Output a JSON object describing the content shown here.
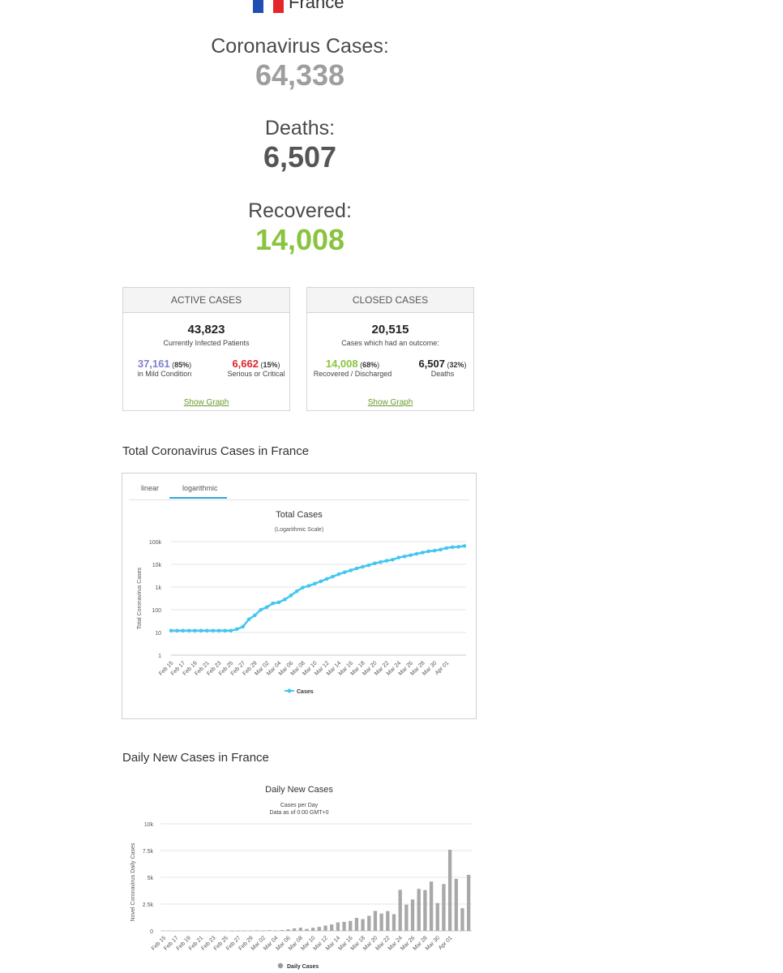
{
  "country": {
    "name": "France",
    "flag_colors": [
      "#1f4fb5",
      "#ffffff",
      "#e3262a"
    ]
  },
  "stats": [
    {
      "label": "Coronavirus Cases:",
      "value": "64,338",
      "color": "#9e9e9e"
    },
    {
      "label": "Deaths:",
      "value": "6,507",
      "color": "#555555"
    },
    {
      "label": "Recovered:",
      "value": "14,008",
      "color": "#8ac43f"
    }
  ],
  "active_cases": {
    "header": "Active Cases",
    "total": "43,823",
    "total_label": "Currently Infected Patients",
    "mild": {
      "value": "37,161",
      "pct": "85%",
      "label": "in Mild Condition",
      "color": "#8080cf"
    },
    "critical": {
      "value": "6,662",
      "pct": "15%",
      "label": "Serious or Critical",
      "color": "#e0242a"
    },
    "link": "Show Graph"
  },
  "closed_cases": {
    "header": "Closed Cases",
    "total": "20,515",
    "total_label": "Cases which had an outcome:",
    "recovered": {
      "value": "14,008",
      "pct": "68%",
      "label": "Recovered / Discharged",
      "color": "#8ac43f"
    },
    "deaths": {
      "value": "6,507",
      "pct": "32%",
      "label": "Deaths",
      "color": "#222222"
    },
    "link": "Show Graph"
  },
  "total_section": {
    "heading": "Total Coronavirus Cases in France",
    "tabs": [
      "linear",
      "logarithmic"
    ],
    "active_tab": "logarithmic"
  },
  "daily_section": {
    "heading": "Daily New Cases in France"
  },
  "chart_data": [
    {
      "type": "line",
      "title": "Total Cases",
      "subtitle": "(Logarithmic Scale)",
      "xlabel": "",
      "ylabel": "Total Coronavirus Cases",
      "yscale": "log",
      "ylim": [
        1,
        100000
      ],
      "yticks": [
        "1",
        "10",
        "100",
        "1k",
        "10k",
        "100k"
      ],
      "xtick_labels": [
        "Feb 15",
        "Feb 17",
        "Feb 19",
        "Feb 21",
        "Feb 23",
        "Feb 25",
        "Feb 27",
        "Feb 29",
        "Mar 02",
        "Mar 04",
        "Mar 06",
        "Mar 08",
        "Mar 10",
        "Mar 12",
        "Mar 14",
        "Mar 16",
        "Mar 18",
        "Mar 20",
        "Mar 22",
        "Mar 24",
        "Mar 26",
        "Mar 28",
        "Mar 30",
        "Apr 01"
      ],
      "legend": "bottom-center",
      "color": "#43c6f1",
      "series": [
        {
          "name": "Cases",
          "values": [
            12,
            12,
            12,
            12,
            12,
            12,
            12,
            12,
            12,
            12,
            12,
            14,
            18,
            38,
            57,
            100,
            130,
            191,
            212,
            285,
            423,
            653,
            949,
            1126,
            1412,
            1784,
            2281,
            2876,
            3661,
            4499,
            5423,
            6633,
            7730,
            9134,
            10995,
            12612,
            14459,
            16018,
            19856,
            22302,
            25233,
            29155,
            32964,
            37575,
            40174,
            44550,
            52128,
            56989,
            59105,
            64338
          ]
        }
      ]
    },
    {
      "type": "bar",
      "title": "Daily New Cases",
      "subtitle": "Cases per Day",
      "note": "Data as of 0:00 GMT+0",
      "xlabel": "",
      "ylabel": "Novel Coronavirus Daily Cases",
      "ylim": [
        0,
        10000
      ],
      "yticks": [
        "0",
        "2.5k",
        "5k",
        "7.5k",
        "10k"
      ],
      "xtick_labels": [
        "Feb 15",
        "Feb 17",
        "Feb 19",
        "Feb 21",
        "Feb 23",
        "Feb 25",
        "Feb 27",
        "Feb 29",
        "Mar 02",
        "Mar 04",
        "Mar 06",
        "Mar 08",
        "Mar 10",
        "Mar 12",
        "Mar 14",
        "Mar 16",
        "Mar 18",
        "Mar 20",
        "Mar 22",
        "Mar 24",
        "Mar 26",
        "Mar 28",
        "Mar 30",
        "Apr 01"
      ],
      "legend": "bottom-center",
      "color": "#a8a8a8",
      "series": [
        {
          "name": "Daily Cases",
          "values": [
            0,
            0,
            0,
            0,
            0,
            0,
            0,
            0,
            0,
            0,
            0,
            2,
            4,
            20,
            19,
            43,
            30,
            61,
            21,
            73,
            138,
            230,
            296,
            177,
            286,
            372,
            497,
            595,
            785,
            838,
            924,
            1210,
            1097,
            1404,
            1861,
            1617,
            1847,
            1559,
            3838,
            2446,
            2931,
            3922,
            3809,
            4611,
            2599,
            4376,
            7578,
            4861,
            2116,
            5233
          ]
        }
      ]
    }
  ]
}
